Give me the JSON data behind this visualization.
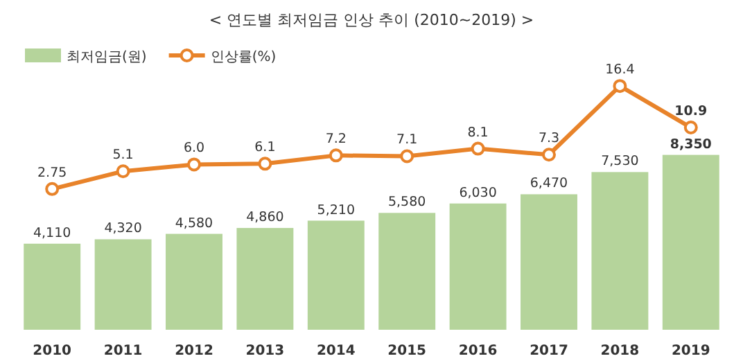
{
  "chart_data": {
    "type": "bar",
    "title": "< 연도별 최저임금 인상 추이 (2010~2019) >",
    "categories": [
      "2010",
      "2011",
      "2012",
      "2013",
      "2014",
      "2015",
      "2016",
      "2017",
      "2018",
      "2019"
    ],
    "series": [
      {
        "name": "최저임금(원)",
        "type": "bar",
        "color": "#b5d49b",
        "values": [
          4110,
          4320,
          4580,
          4860,
          5210,
          5580,
          6030,
          6470,
          7530,
          8350
        ],
        "value_labels": [
          "4,110",
          "4,320",
          "4,580",
          "4,860",
          "5,210",
          "5,580",
          "6,030",
          "6,470",
          "7,530",
          "**8,350**"
        ]
      },
      {
        "name": "인상률(%)",
        "type": "line",
        "axis": "y2",
        "color": "#e8832a",
        "marker": "circle",
        "values": [
          2.75,
          5.1,
          6.0,
          6.1,
          7.2,
          7.1,
          8.1,
          7.3,
          16.4,
          10.9
        ],
        "value_labels": [
          "2.75",
          "5.1",
          "6.0",
          "6.1",
          "7.2",
          "7.1",
          "8.1",
          "7.3",
          "16.4",
          "**10.9**"
        ]
      }
    ],
    "tick_labels": "x",
    "legend": "top left"
  }
}
